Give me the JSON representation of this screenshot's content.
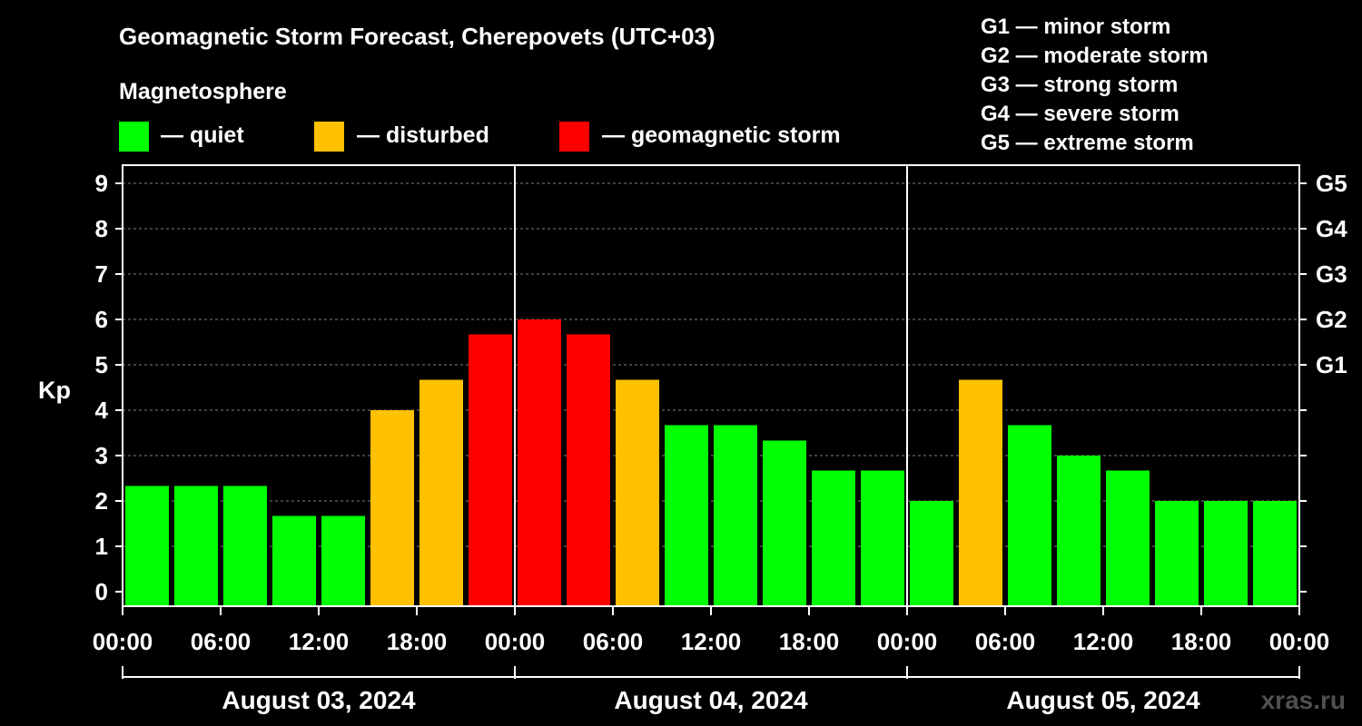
{
  "header": {
    "title": "Geomagnetic Storm Forecast, Cherepovets (UTC+03)",
    "legend_title": "Magnetosphere",
    "legend": [
      {
        "label": "— quiet",
        "color": "#00ff00"
      },
      {
        "label": "— disturbed",
        "color": "#ffc000"
      },
      {
        "label": "— geomagnetic storm",
        "color": "#ff0000"
      }
    ],
    "g_scale": [
      "G1 — minor storm",
      "G2 — moderate storm",
      "G3 — strong storm",
      "G4 — severe storm",
      "G5 — extreme storm"
    ]
  },
  "watermark": "xras.ru",
  "chart_data": {
    "type": "bar",
    "ylabel": "Kp",
    "ylim": [
      0,
      9
    ],
    "yticks": [
      "0",
      "1",
      "2",
      "3",
      "4",
      "5",
      "6",
      "7",
      "8",
      "9"
    ],
    "right_ticks": [
      {
        "kp": 5,
        "label": "G1"
      },
      {
        "kp": 6,
        "label": "G2"
      },
      {
        "kp": 7,
        "label": "G3"
      },
      {
        "kp": 8,
        "label": "G4"
      },
      {
        "kp": 9,
        "label": "G5"
      }
    ],
    "grid": "horizontal dashed",
    "xlim_hours": [
      0,
      72
    ],
    "xtick_labels": [
      "00:00",
      "06:00",
      "12:00",
      "18:00",
      "00:00",
      "06:00",
      "12:00",
      "18:00",
      "00:00",
      "06:00",
      "12:00",
      "18:00",
      "00:00"
    ],
    "days": [
      "August 03, 2024",
      "August 04, 2024",
      "August 05, 2024"
    ],
    "bar_hours": [
      0,
      3,
      6,
      9,
      12,
      15,
      18,
      21,
      24,
      27,
      30,
      33,
      36,
      39,
      42,
      45,
      48,
      51,
      54,
      57,
      60,
      63,
      66,
      69
    ],
    "values": [
      2.33,
      2.33,
      2.33,
      1.67,
      1.67,
      4,
      4.67,
      5.67,
      6,
      5.67,
      4.67,
      3.67,
      3.67,
      3.33,
      2.67,
      2.67,
      2,
      4.67,
      3.67,
      3,
      2.67,
      2,
      2,
      2
    ],
    "levels": [
      "quiet",
      "quiet",
      "quiet",
      "quiet",
      "quiet",
      "disturbed",
      "disturbed",
      "storm",
      "storm",
      "storm",
      "disturbed",
      "quiet",
      "quiet",
      "quiet",
      "quiet",
      "quiet",
      "quiet",
      "disturbed",
      "quiet",
      "quiet",
      "quiet",
      "quiet",
      "quiet",
      "quiet"
    ],
    "level_colors": {
      "quiet": "#00ff00",
      "disturbed": "#ffc000",
      "storm": "#ff0000"
    }
  }
}
